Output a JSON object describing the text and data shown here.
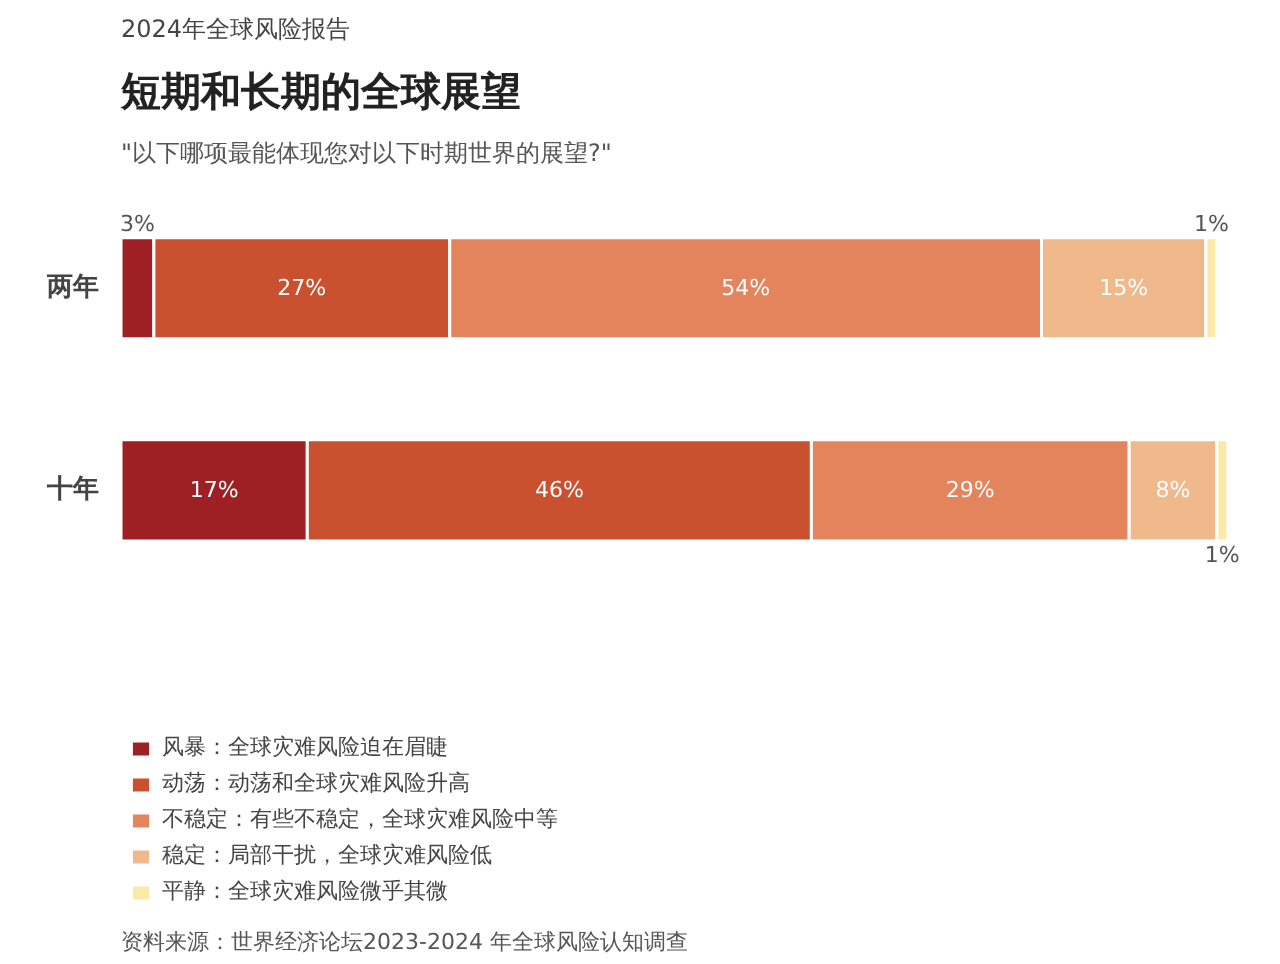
{
  "chart_data": {
    "type": "bar",
    "orientation": "horizontal",
    "stacked": true,
    "title": "短期和长期的全球展望",
    "subtitle": "2024年全球风险报告",
    "annotations": [
      "\"以下哪项最能体现您对以下时期世界的展望?\"",
      "资料来源：世界经济论坛2023-2024 年全球风险认知调查"
    ],
    "categories": [
      "两年",
      "十年"
    ],
    "series": [
      {
        "name": "风暴：全球灾难风险迫在眉睫",
        "color": "#9e1f24",
        "values": [
          3,
          17
        ],
        "value_labels": [
          "3%",
          "17%"
        ]
      },
      {
        "name": "动荡：动荡和全球灾难风险升高",
        "color": "#c9512f",
        "values": [
          27,
          46
        ],
        "value_labels": [
          "27%",
          "46%"
        ]
      },
      {
        "name": "不稳定：有些不稳定，全球灾难风险中等",
        "color": "#e3845c",
        "values": [
          54,
          29
        ],
        "value_labels": [
          "54%",
          "29%"
        ]
      },
      {
        "name": "稳定：局部干扰，全球灾难风险低",
        "color": "#f0b98c",
        "values": [
          15,
          8
        ],
        "value_labels": [
          "15%",
          "8%"
        ]
      },
      {
        "name": "平静：全球灾难风险微乎其微",
        "color": "#f9eaa8",
        "values": [
          1,
          1
        ],
        "value_labels": [
          "1%",
          "1%"
        ]
      }
    ],
    "legend": "bottom left",
    "grid": false
  }
}
